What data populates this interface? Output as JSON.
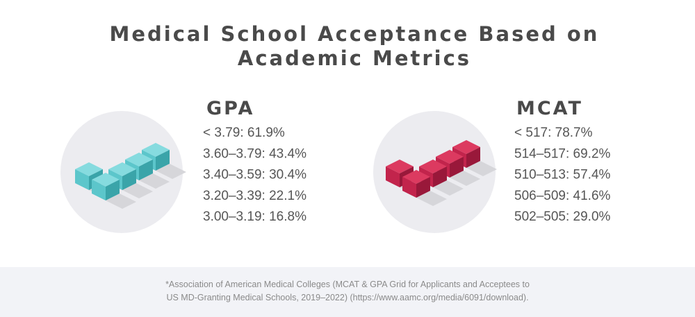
{
  "title": [
    "Medical School Acceptance Based on",
    "Academic Metrics"
  ],
  "sections": [
    {
      "heading": "GPA",
      "items": [
        "< 3.79: 61.9%",
        "3.60–3.79: 43.4%",
        "3.40–3.59: 30.4%",
        "3.20–3.39: 22.1%",
        "3.00–3.19: 16.8%"
      ]
    },
    {
      "heading": "MCAT",
      "items": [
        "< 517: 78.7%",
        "514–517: 69.2%",
        "510–513: 57.4%",
        "506–509: 41.6%",
        "502–505: 29.0%"
      ]
    }
  ],
  "footnote": [
    "*Association of American Medical Colleges (MCAT & GPA Grid for Applicants and Acceptees to",
    "US MD-Granting Medical Schools, 2019–2022) (https://www.aamc.org/media/6091/download)."
  ]
}
